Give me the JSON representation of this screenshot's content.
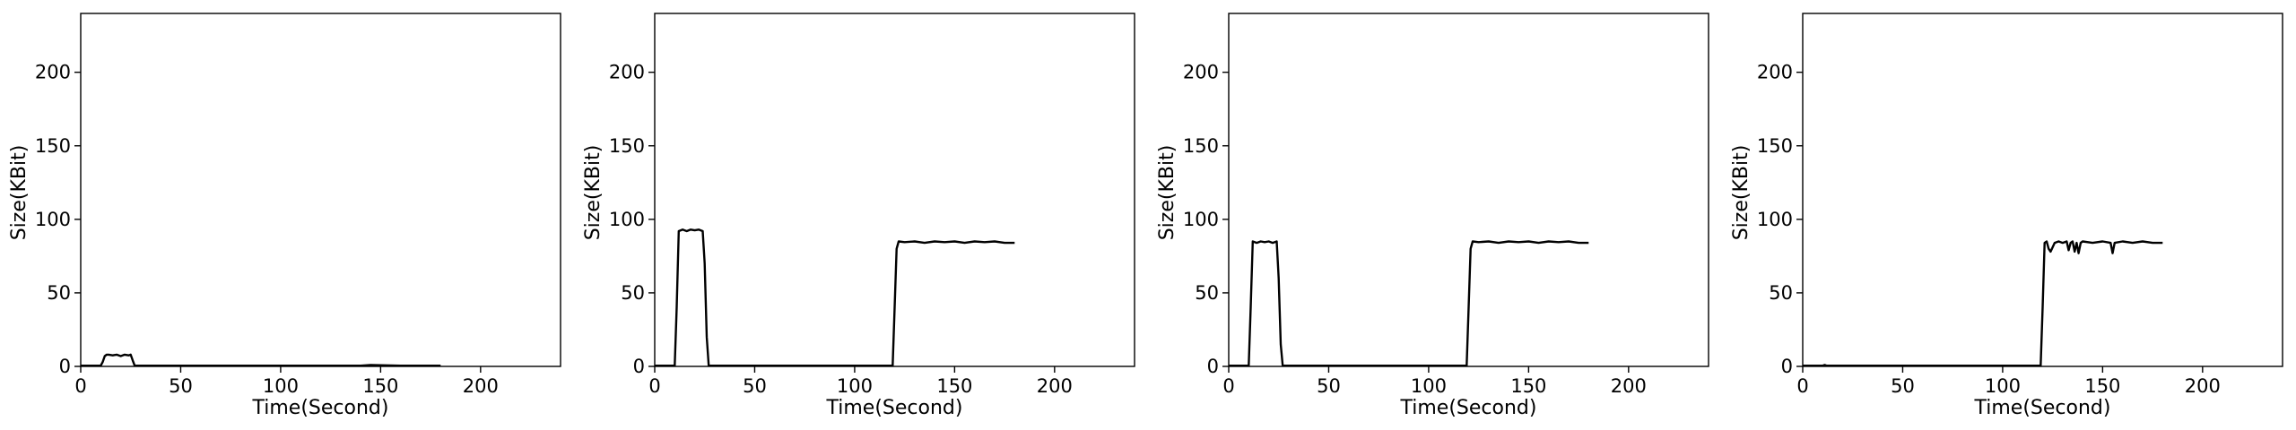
{
  "chart_data": [
    {
      "type": "line",
      "title": "",
      "xlabel": "Time(Second)",
      "ylabel": "Size(KBit)",
      "xlim": [
        0,
        240
      ],
      "ylim": [
        0,
        240
      ],
      "xticks": [
        0,
        50,
        100,
        150,
        200
      ],
      "yticks": [
        0,
        50,
        100,
        150,
        200
      ],
      "grid": false,
      "series": [
        {
          "color": "#000000",
          "x": [
            0,
            10,
            11,
            12,
            13,
            14,
            16,
            18,
            20,
            22,
            24,
            25,
            26,
            27,
            40,
            60,
            80,
            100,
            120,
            140,
            145,
            160,
            180
          ],
          "y": [
            0.5,
            0.5,
            3,
            7,
            8,
            8,
            7.5,
            8,
            7,
            8,
            7.5,
            8,
            4,
            0.5,
            0.5,
            0.5,
            0.5,
            0.5,
            0.5,
            0.5,
            1,
            0.5,
            0.5
          ]
        }
      ]
    },
    {
      "type": "line",
      "title": "",
      "xlabel": "Time(Second)",
      "ylabel": "Size(KBit)",
      "xlim": [
        0,
        240
      ],
      "ylim": [
        0,
        240
      ],
      "xticks": [
        0,
        50,
        100,
        150,
        200
      ],
      "yticks": [
        0,
        50,
        100,
        150,
        200
      ],
      "grid": false,
      "series": [
        {
          "color": "#000000",
          "x": [
            0,
            10,
            11,
            12,
            14,
            16,
            18,
            20,
            22,
            24,
            25,
            26,
            27,
            40,
            60,
            80,
            100,
            119,
            120,
            121,
            122,
            125,
            130,
            135,
            140,
            145,
            150,
            155,
            160,
            165,
            170,
            175,
            180
          ],
          "y": [
            0.5,
            0.5,
            40,
            92,
            93,
            92,
            93,
            92.5,
            93,
            92,
            70,
            20,
            0.5,
            0.5,
            0.5,
            0.5,
            0.5,
            0.5,
            40,
            80,
            85,
            84.5,
            85,
            84,
            85,
            84.5,
            85,
            84,
            85,
            84.5,
            85,
            84,
            84
          ]
        }
      ]
    },
    {
      "type": "line",
      "title": "",
      "xlabel": "Time(Second)",
      "ylabel": "Size(KBit)",
      "xlim": [
        0,
        240
      ],
      "ylim": [
        0,
        240
      ],
      "xticks": [
        0,
        50,
        100,
        150,
        200
      ],
      "yticks": [
        0,
        50,
        100,
        150,
        200
      ],
      "grid": false,
      "series": [
        {
          "color": "#000000",
          "x": [
            0,
            10,
            11,
            12,
            14,
            16,
            18,
            20,
            22,
            24,
            25,
            26,
            27,
            40,
            60,
            80,
            100,
            119,
            120,
            121,
            122,
            125,
            130,
            135,
            140,
            145,
            150,
            155,
            160,
            165,
            170,
            175,
            180
          ],
          "y": [
            0.5,
            0.5,
            40,
            85,
            84,
            85,
            84.5,
            85,
            84,
            85,
            60,
            15,
            0.5,
            0.5,
            0.5,
            0.5,
            0.5,
            0.5,
            40,
            80,
            85,
            84.5,
            85,
            84,
            85,
            84.5,
            85,
            84,
            85,
            84.5,
            85,
            84,
            84
          ]
        }
      ]
    },
    {
      "type": "line",
      "title": "",
      "xlabel": "Time(Second)",
      "ylabel": "Size(KBit)",
      "xlim": [
        0,
        240
      ],
      "ylim": [
        0,
        240
      ],
      "xticks": [
        0,
        50,
        100,
        150,
        200
      ],
      "yticks": [
        0,
        50,
        100,
        150,
        200
      ],
      "grid": false,
      "series": [
        {
          "color": "#000000",
          "x": [
            0,
            5,
            10,
            11,
            12,
            20,
            40,
            60,
            80,
            100,
            119,
            120,
            121,
            122,
            123,
            124,
            126,
            128,
            130,
            132,
            133,
            134,
            135,
            136,
            137,
            138,
            139,
            140,
            145,
            150,
            154,
            155,
            156,
            160,
            165,
            170,
            175,
            180
          ],
          "y": [
            0.5,
            0.5,
            0.5,
            1,
            0.5,
            0.5,
            0.5,
            0.5,
            0.5,
            0.5,
            0.5,
            40,
            84,
            85,
            80,
            78,
            84,
            85,
            84,
            85,
            79,
            84,
            85,
            78,
            84,
            77,
            84,
            85,
            84,
            85,
            84,
            77,
            84,
            85,
            84,
            85,
            84,
            84
          ]
        }
      ]
    }
  ]
}
